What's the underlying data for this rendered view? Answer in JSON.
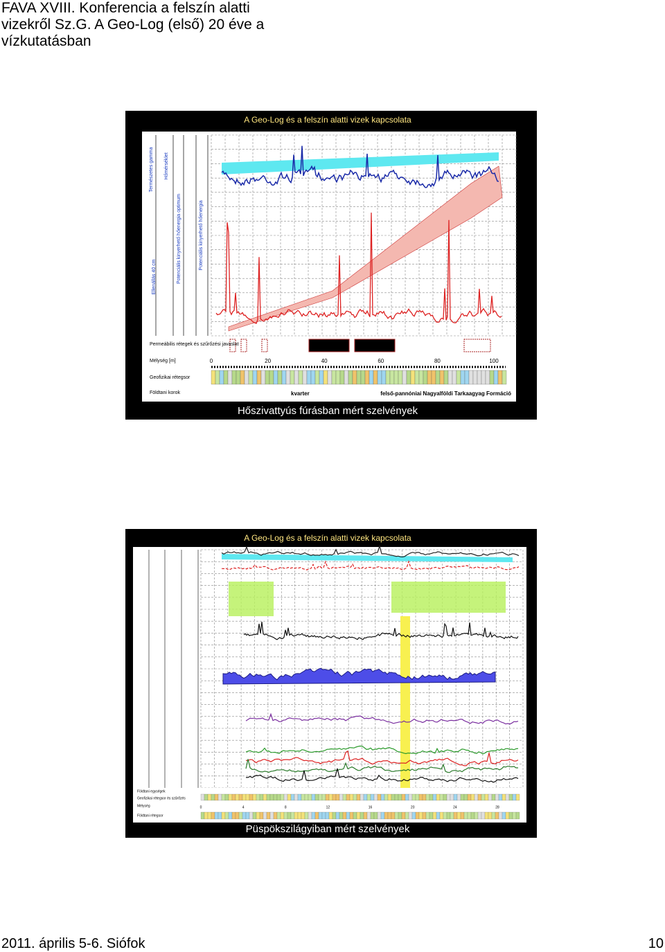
{
  "header": {
    "lines": [
      "FAVA XVIII. Konferencia a felszín alatti",
      "vizekről Sz.G. A Geo-Log (első) 20 éve a",
      "vízkutatásban"
    ]
  },
  "slides": [
    {
      "title": "A Geo-Log és a felszín alatti vizek kapcsolata",
      "caption": "Hőszivattyús fúrásban mért szelvények",
      "track_labels": [
        "Természetes gamma",
        "Hőmérséklet",
        "Ellenállás 40 cm",
        "Potenciális kinyerhető hőenergia optimum",
        "Potenciális kinyerhető hőenergia"
      ],
      "row_labels": [
        "Permeábilis rétegek és szűrőzési javaslat",
        "Mélység [m]",
        "Geofizikai rétegsor",
        "Földtani korok"
      ],
      "depth_ticks": [
        0,
        20,
        40,
        60,
        80,
        100
      ],
      "units": [
        "kvarter",
        "felső-pannóniai Nagyalföldi Tarkaagyag Formáció"
      ]
    },
    {
      "title": "A Geo-Log és a felszín alatti vizek kapcsolata",
      "caption": "Püspökszilágyiban mért szelvények",
      "row_labels": [
        "Földtani egységek",
        "Geofizikai rétegsor és szűrőzés",
        "Mélység",
        "Földtani rétegsor"
      ],
      "depth_ticks": [
        0,
        4,
        8,
        12,
        16,
        20,
        24,
        28
      ]
    }
  ],
  "footer": {
    "left": "2011. április 5-6. Siófok",
    "right": "10"
  }
}
